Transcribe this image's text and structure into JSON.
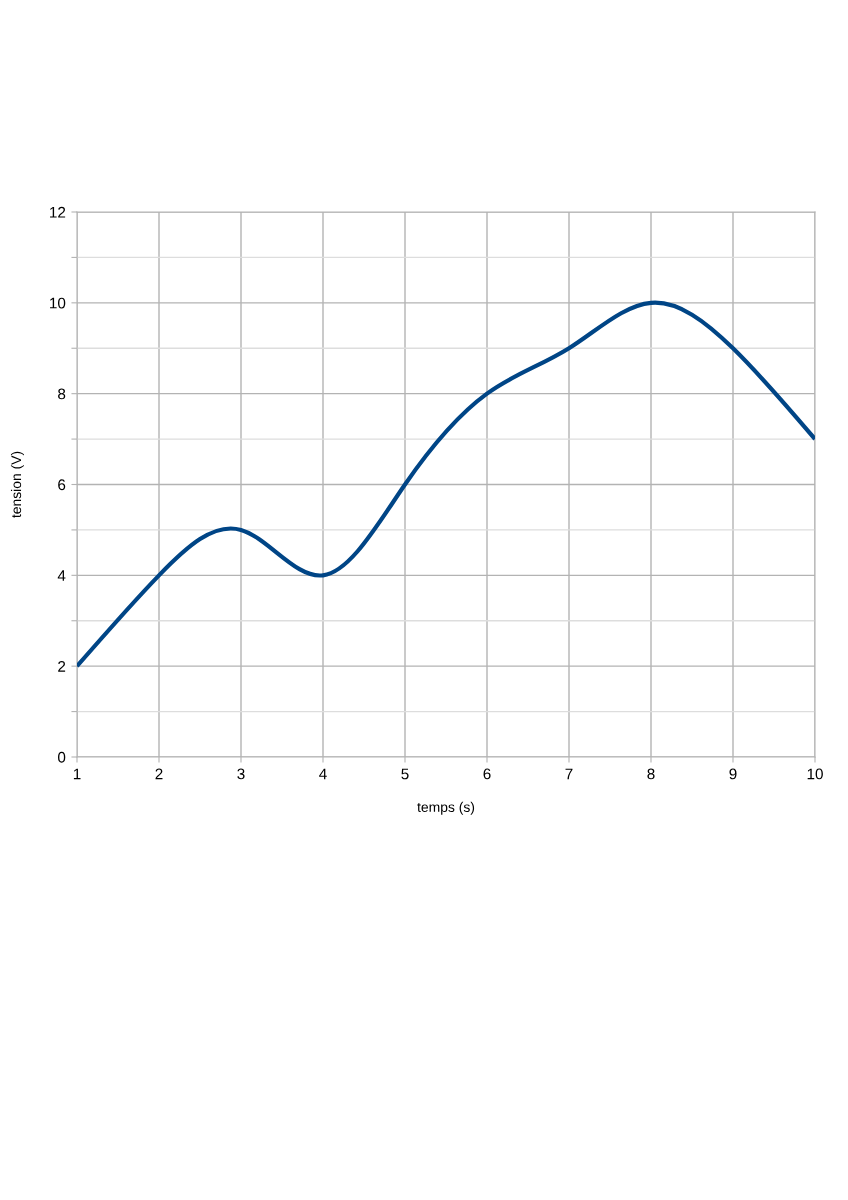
{
  "chart_data": {
    "type": "line",
    "xlabel": "temps (s)",
    "ylabel": "tension (V)",
    "x": [
      1,
      2,
      3,
      4,
      5,
      6,
      7,
      8,
      9,
      10
    ],
    "series": [
      {
        "color": "#004586",
        "values": [
          2,
          4,
          5,
          4,
          6,
          8,
          9,
          10,
          9,
          7
        ]
      }
    ],
    "xlim": [
      1,
      10
    ],
    "xticks": [
      1,
      2,
      3,
      4,
      5,
      6,
      7,
      8,
      9,
      10
    ],
    "ylim": [
      0,
      12
    ],
    "yticks": [
      0,
      {
        "value": 1,
        "label": null
      },
      2,
      {
        "value": 3,
        "label": null
      },
      4,
      {
        "value": 5,
        "label": null
      },
      6,
      {
        "value": 7,
        "label": null
      },
      8,
      {
        "value": 9,
        "label": null
      },
      10,
      {
        "value": 11,
        "label": null
      },
      12
    ],
    "grid": true,
    "marker": "none",
    "line_style": "solid"
  }
}
